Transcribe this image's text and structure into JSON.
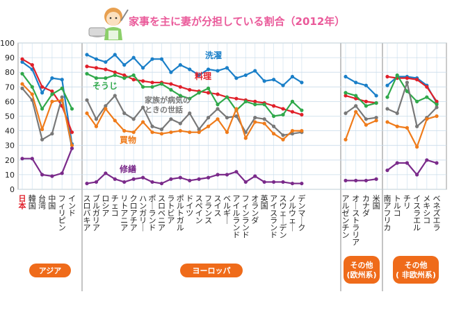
{
  "title": "家事を主に妻が分担している割合（2012年）",
  "chart_data": {
    "type": "line",
    "title": "家事を主に妻が分担している割合（2012年）",
    "ylim": [
      0,
      100
    ],
    "yticks": [
      0,
      10,
      20,
      30,
      40,
      50,
      60,
      70,
      80,
      90,
      100
    ],
    "grid": true,
    "groups": [
      {
        "label": "アジア",
        "countries": [
          "日本",
          "韓国",
          "台湾",
          "中国",
          "フィリピン",
          "インド"
        ]
      },
      {
        "label": "ヨーロッパ",
        "countries": [
          "スロバキア",
          "ブルガリア",
          "ロシア",
          "チェコ",
          "リトアニア",
          "クロアチア",
          "ハンガリー",
          "ポーランド",
          "スロベニア",
          "ラトビア",
          "ポルトガル",
          "ドイツ",
          "スペイン",
          "フランス",
          "スイス",
          "ベルギー",
          "アイルランド",
          "フィンランド",
          "オランダ",
          "英国",
          "アイスランド",
          "スウェーデン",
          "ノルウェー",
          "デンマーク"
        ]
      },
      {
        "label": "その他\n(欧州系)",
        "countries": [
          "アルゼンチン",
          "オーストラリア",
          "カナダ",
          "米国"
        ]
      },
      {
        "label": "その他\n( 非欧州系)",
        "countries": [
          "南アフリカ",
          "トルコ",
          "チリ",
          "イスラエル",
          "メキシコ",
          "ベネズエラ"
        ]
      }
    ],
    "highlight_country": "日本",
    "series": [
      {
        "name": "洗濯",
        "color": "#1a7fc8",
        "values": [
          [
            87,
            82,
            66,
            76,
            75,
            31
          ],
          [
            92,
            89,
            87,
            92,
            85,
            90,
            83,
            89,
            89,
            80,
            85,
            82,
            78,
            82,
            81,
            83,
            76,
            78,
            81,
            74,
            75,
            71,
            77,
            73
          ],
          [
            77,
            73,
            71,
            64
          ],
          [
            71,
            77,
            77,
            76,
            71,
            59
          ]
        ]
      },
      {
        "name": "料理",
        "color": "#e0202a",
        "values": [
          [
            89,
            85,
            70,
            67,
            57,
            39
          ],
          [
            84,
            83,
            82,
            80,
            78,
            75,
            74,
            73,
            73,
            72,
            70,
            68,
            67,
            66,
            65,
            63,
            62,
            61,
            60,
            59,
            57,
            55,
            53,
            51
          ],
          [
            64,
            62,
            60,
            59
          ],
          [
            77,
            76,
            76,
            75,
            70,
            60
          ]
        ]
      },
      {
        "name": "そうじ",
        "color": "#2fa84a",
        "values": [
          [
            79,
            70,
            55,
            65,
            69,
            55
          ],
          [
            79,
            76,
            76,
            78,
            76,
            78,
            70,
            70,
            72,
            68,
            64,
            62,
            66,
            69,
            58,
            63,
            54,
            60,
            58,
            58,
            50,
            51,
            60,
            54
          ],
          [
            66,
            64,
            57,
            59
          ],
          [
            63,
            78,
            67,
            60,
            63,
            58
          ]
        ]
      },
      {
        "name": "家族が病気のときの世話",
        "color": "#787878",
        "values": [
          [
            69,
            61,
            34,
            38,
            63,
            28
          ],
          [
            61,
            48,
            57,
            64,
            52,
            48,
            56,
            43,
            41,
            48,
            45,
            52,
            41,
            49,
            55,
            49,
            50,
            39,
            49,
            48,
            43,
            37,
            38,
            39
          ],
          [
            52,
            57,
            48,
            49
          ],
          [
            55,
            52,
            73,
            43,
            49,
            56
          ]
        ]
      },
      {
        "name": "買物",
        "color": "#ef7b1a",
        "values": [
          [
            72,
            65,
            41,
            60,
            61,
            30
          ],
          [
            52,
            43,
            55,
            47,
            40,
            39,
            46,
            39,
            38,
            39,
            40,
            39,
            39,
            43,
            48,
            39,
            55,
            35,
            46,
            45,
            38,
            34,
            40,
            40
          ],
          [
            34,
            53,
            44,
            47
          ],
          [
            46,
            43,
            42,
            29,
            48,
            50
          ]
        ]
      },
      {
        "name": "修繕",
        "color": "#7a2a8a",
        "values": [
          [
            21,
            21,
            10,
            9,
            11,
            28
          ],
          [
            4,
            5,
            11,
            7,
            5,
            7,
            8,
            5,
            4,
            7,
            8,
            6,
            7,
            8,
            10,
            10,
            12,
            5,
            9,
            5,
            5,
            5,
            4,
            4
          ],
          [
            6,
            6,
            6,
            7
          ],
          [
            13,
            18,
            18,
            10,
            20,
            18
          ]
        ]
      }
    ]
  }
}
